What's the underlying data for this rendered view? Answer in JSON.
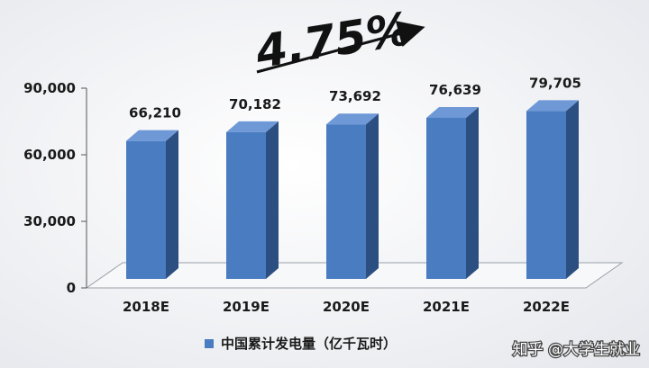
{
  "chart_data": {
    "type": "bar",
    "categories": [
      "2018E",
      "2019E",
      "2020E",
      "2021E",
      "2022E"
    ],
    "series": [
      {
        "name": "中国累计发电量（亿千瓦时）",
        "values": [
          66210,
          70182,
          73692,
          76639,
          79705
        ],
        "labels": [
          "66,210",
          "70,182",
          "73,692",
          "76,639",
          "79,705"
        ]
      }
    ],
    "yticks": [
      "0",
      "30,000",
      "60,000",
      "90,000"
    ],
    "ylim": [
      0,
      90000
    ],
    "annotation": "4.75%",
    "legend_position": "bottom",
    "bar_color": "#4a7cc2",
    "bar_side_color": "#2c4f82",
    "bar_top_color": "#6e98d6"
  },
  "watermark": "知乎 @大学生就业"
}
